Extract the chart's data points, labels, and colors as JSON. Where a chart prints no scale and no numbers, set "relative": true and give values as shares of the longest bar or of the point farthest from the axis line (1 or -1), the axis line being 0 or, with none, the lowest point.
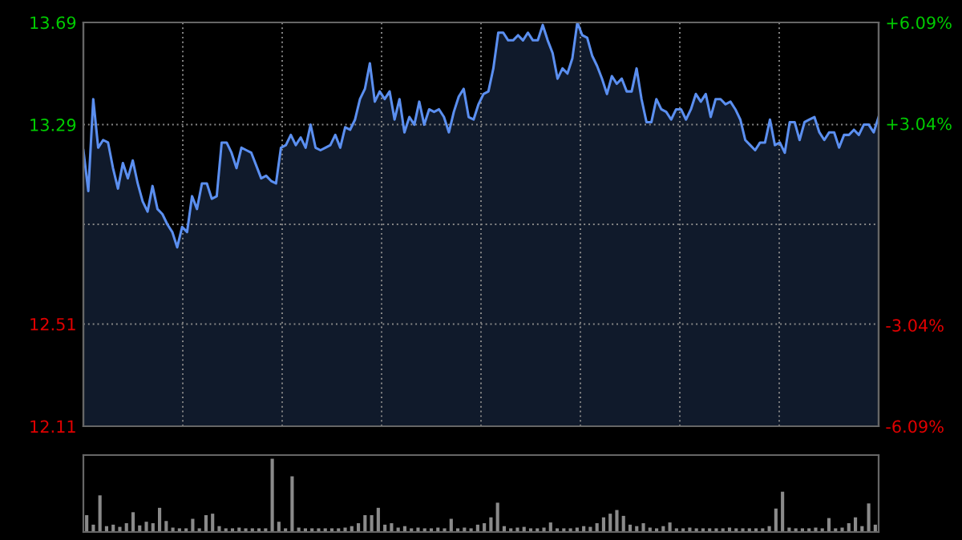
{
  "chart_data": [
    {
      "type": "area",
      "categories": [
        null,
        null,
        null,
        null,
        null,
        null,
        null,
        null,
        null,
        null,
        null,
        null,
        null,
        null,
        null,
        null,
        null,
        null,
        null,
        null,
        null,
        null,
        null,
        null,
        null,
        null,
        null,
        null,
        null,
        null,
        null,
        null,
        null,
        null,
        null,
        null,
        null,
        null,
        null,
        null,
        null,
        null,
        null,
        null,
        null,
        null,
        null,
        null,
        null,
        null,
        null,
        null,
        null,
        null,
        null,
        null,
        null,
        null,
        null,
        null,
        null,
        null,
        null,
        null,
        null,
        null,
        null,
        null,
        null,
        null,
        null,
        null,
        null,
        null,
        null,
        null,
        null,
        null,
        null,
        null,
        null,
        null,
        null,
        null,
        null,
        null,
        null,
        null,
        null,
        null,
        null,
        null,
        null,
        null,
        null,
        null,
        null,
        null,
        null,
        null,
        null,
        null,
        null,
        null,
        null,
        null,
        null,
        null,
        null,
        null,
        null,
        null,
        null,
        null,
        null,
        null,
        null,
        null,
        null,
        null,
        null,
        null,
        null,
        null,
        null,
        null,
        null,
        null,
        null,
        null,
        null,
        null,
        null,
        null,
        null,
        null,
        null,
        null,
        null,
        null,
        null,
        null,
        null,
        null,
        null,
        null,
        null,
        null,
        null,
        null,
        null,
        null,
        null,
        null,
        null,
        null,
        null,
        null,
        null,
        null,
        null,
        null
      ],
      "ylim": [
        12.11,
        13.69
      ],
      "yticks": [
        13.69,
        13.29,
        {
          "value": 12.9,
          "label": null
        },
        12.51,
        12.11
      ],
      "y2lim": [
        -6.09,
        6.09
      ],
      "y2ticks": [
        {
          "value": 6.09,
          "label": "+6.09%"
        },
        {
          "value": 3.04,
          "label": "+3.04%"
        },
        {
          "value": -3.04,
          "label": "-3.04%"
        },
        {
          "value": -6.09,
          "label": "-6.09%"
        }
      ],
      "tick_labels": "y",
      "grid": true,
      "legend": false,
      "series": [
        {
          "color": "#5b8ff0",
          "values": [
            13.19,
            13.03,
            13.39,
            13.2,
            13.23,
            13.22,
            13.12,
            13.04,
            13.14,
            13.08,
            13.15,
            13.06,
            12.99,
            12.95,
            13.05,
            12.96,
            12.94,
            12.9,
            12.87,
            12.81,
            12.89,
            12.87,
            13.01,
            12.96,
            13.06,
            13.06,
            13.0,
            13.01,
            13.22,
            13.22,
            13.18,
            13.12,
            13.2,
            13.19,
            13.18,
            13.13,
            13.08,
            13.09,
            13.07,
            13.06,
            13.2,
            13.21,
            13.25,
            13.21,
            13.24,
            13.2,
            13.29,
            13.2,
            13.19,
            13.2,
            13.21,
            13.25,
            13.2,
            13.28,
            13.27,
            13.31,
            13.39,
            13.43,
            13.53,
            13.38,
            13.42,
            13.39,
            13.42,
            13.31,
            13.39,
            13.26,
            13.32,
            13.29,
            13.38,
            13.29,
            13.35,
            13.34,
            13.35,
            13.32,
            13.26,
            13.34,
            13.4,
            13.43,
            13.32,
            13.31,
            13.37,
            13.41,
            13.42,
            13.51,
            13.65,
            13.65,
            13.62,
            13.62,
            13.64,
            13.62,
            13.65,
            13.62,
            13.62,
            13.68,
            13.62,
            13.57,
            13.47,
            13.51,
            13.49,
            13.55,
            13.69,
            13.64,
            13.63,
            13.56,
            13.52,
            13.47,
            13.41,
            13.48,
            13.45,
            13.47,
            13.42,
            13.42,
            13.51,
            13.39,
            13.3,
            13.3,
            13.39,
            13.35,
            13.34,
            13.31,
            13.35,
            13.35,
            13.31,
            13.35,
            13.41,
            13.38,
            13.41,
            13.32,
            13.39,
            13.39,
            13.37,
            13.38,
            13.35,
            13.31,
            13.23,
            13.21,
            13.19,
            13.22,
            13.22,
            13.31,
            13.21,
            13.22,
            13.18,
            13.3,
            13.3,
            13.23,
            13.3,
            13.31,
            13.32,
            13.26,
            13.23,
            13.26,
            13.26,
            13.2,
            13.25,
            13.25,
            13.27,
            13.25,
            13.29,
            13.29,
            13.26,
            13.32
          ]
        }
      ]
    },
    {
      "type": "bar",
      "relative": true,
      "color": "#8a8a8a",
      "categories": [
        null,
        null,
        null,
        null,
        null,
        null,
        null,
        null,
        null,
        null,
        null,
        null,
        null,
        null,
        null,
        null,
        null,
        null,
        null,
        null,
        null,
        null,
        null,
        null,
        null,
        null,
        null,
        null,
        null,
        null,
        null,
        null,
        null,
        null,
        null,
        null,
        null,
        null,
        null,
        null,
        null,
        null,
        null,
        null,
        null,
        null,
        null,
        null,
        null,
        null,
        null,
        null,
        null,
        null,
        null,
        null,
        null,
        null,
        null,
        null,
        null,
        null,
        null,
        null,
        null,
        null,
        null,
        null,
        null,
        null,
        null,
        null,
        null,
        null,
        null,
        null,
        null,
        null,
        null,
        null,
        null,
        null,
        null,
        null,
        null,
        null,
        null,
        null,
        null,
        null,
        null,
        null,
        null,
        null,
        null,
        null,
        null,
        null,
        null,
        null,
        null,
        null,
        null,
        null,
        null,
        null,
        null,
        null,
        null,
        null,
        null,
        null,
        null,
        null,
        null,
        null,
        null,
        null,
        null,
        null
      ],
      "values": [
        0.23,
        0.1,
        0.5,
        0.08,
        0.1,
        0.07,
        0.12,
        0.27,
        0.09,
        0.14,
        0.12,
        0.33,
        0.15,
        0.06,
        0.05,
        0.05,
        0.18,
        0.05,
        0.23,
        0.25,
        0.08,
        0.05,
        0.05,
        0.06,
        0.05,
        0.05,
        0.05,
        0.05,
        1.0,
        0.14,
        0.05,
        0.76,
        0.06,
        0.05,
        0.05,
        0.05,
        0.05,
        0.05,
        0.05,
        0.06,
        0.08,
        0.12,
        0.23,
        0.23,
        0.33,
        0.1,
        0.12,
        0.06,
        0.08,
        0.05,
        0.06,
        0.05,
        0.05,
        0.06,
        0.05,
        0.18,
        0.05,
        0.06,
        0.05,
        0.1,
        0.12,
        0.2,
        0.4,
        0.08,
        0.05,
        0.06,
        0.07,
        0.05,
        0.05,
        0.06,
        0.13,
        0.05,
        0.05,
        0.05,
        0.06,
        0.08,
        0.07,
        0.12,
        0.2,
        0.25,
        0.3,
        0.22,
        0.1,
        0.08,
        0.12,
        0.06,
        0.05,
        0.08,
        0.13,
        0.05,
        0.05,
        0.06,
        0.05,
        0.05,
        0.05,
        0.05,
        0.05,
        0.06,
        0.05,
        0.05,
        0.05,
        0.05,
        0.05,
        0.08,
        0.32,
        0.55,
        0.06,
        0.05,
        0.05,
        0.05,
        0.06,
        0.05,
        0.19,
        0.05,
        0.06,
        0.12,
        0.2,
        0.08,
        0.39,
        0.1
      ]
    }
  ]
}
